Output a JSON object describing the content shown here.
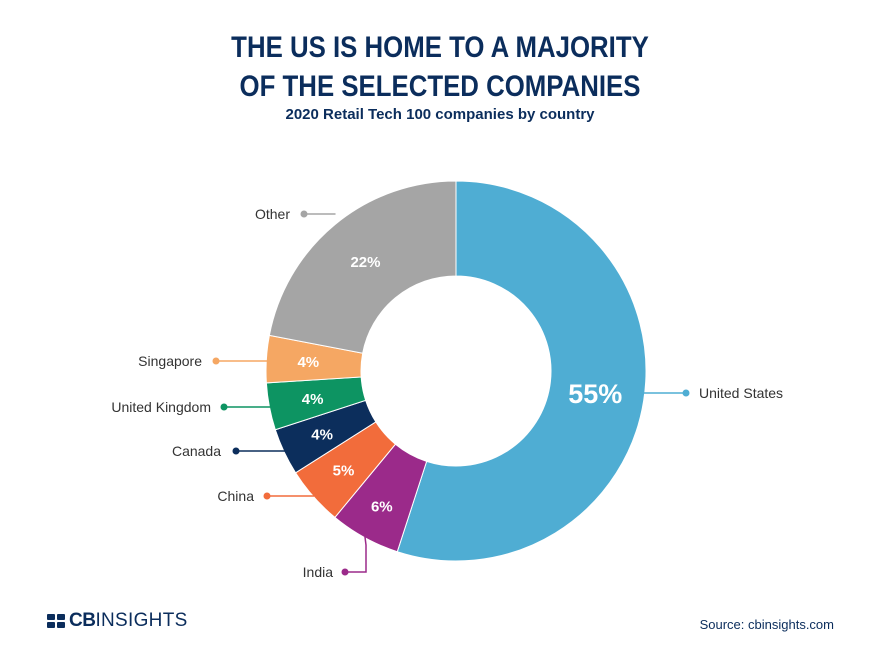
{
  "header": {
    "title_line1": "THE US IS HOME TO A MAJORITY",
    "title_line2": "OF THE SELECTED COMPANIES",
    "subtitle": "2020 Retail Tech 100 companies by country"
  },
  "chart_data": {
    "type": "pie",
    "variant": "donut",
    "title": "THE US IS HOME TO A MAJORITY OF THE SELECTED COMPANIES",
    "subtitle": "2020 Retail Tech 100 companies by country",
    "slices": [
      {
        "label": "United States",
        "value": 55,
        "display": "55%",
        "color": "#4fadd3"
      },
      {
        "label": "India",
        "value": 6,
        "display": "6%",
        "color": "#9b2a8a"
      },
      {
        "label": "China",
        "value": 5,
        "display": "5%",
        "color": "#f26c3b"
      },
      {
        "label": "Canada",
        "value": 4,
        "display": "4%",
        "color": "#0c2e5c"
      },
      {
        "label": "United Kingdom",
        "value": 4,
        "display": "4%",
        "color": "#0d9462"
      },
      {
        "label": "Singapore",
        "value": 4,
        "display": "4%",
        "color": "#f5a763"
      },
      {
        "label": "Other",
        "value": 22,
        "display": "22%",
        "color": "#a5a5a5"
      }
    ]
  },
  "footer": {
    "logo_cb": "CB",
    "logo_insights": "INSIGHTS",
    "source": "Source: cbinsights.com"
  },
  "colors": {
    "title": "#0b2d5c",
    "label_text": "#333333"
  }
}
